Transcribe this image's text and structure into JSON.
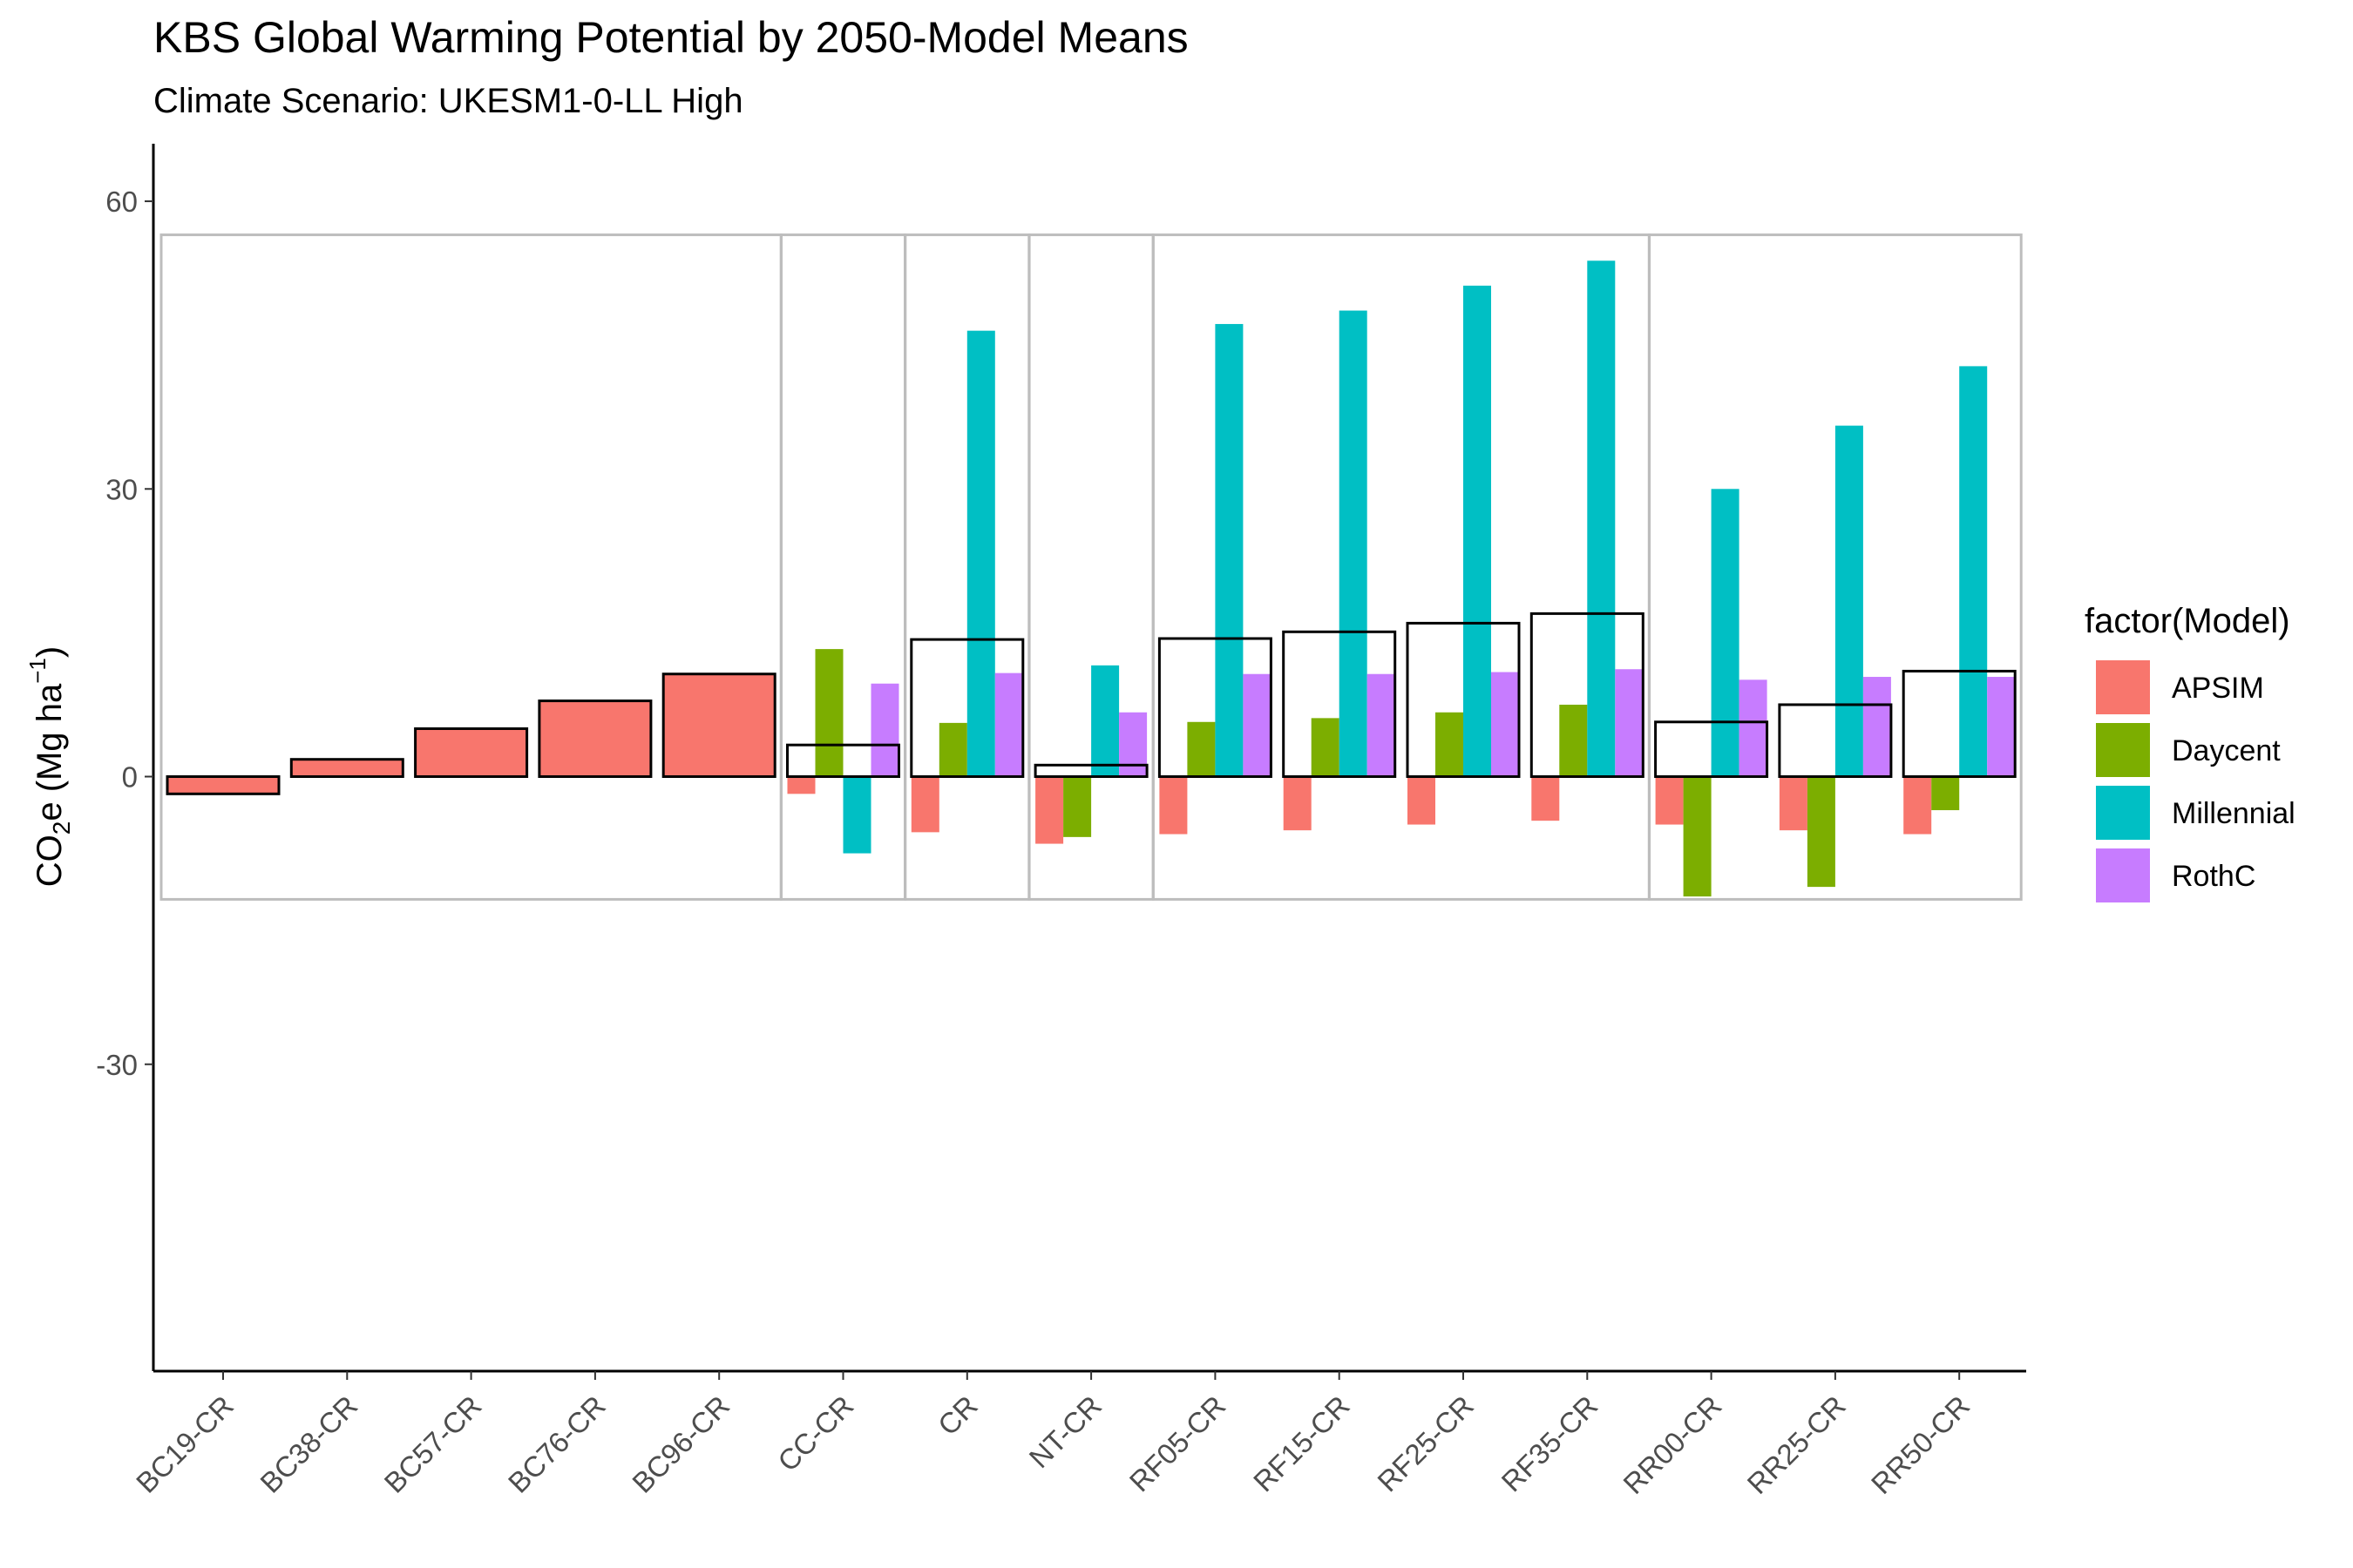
{
  "chart_data": {
    "type": "bar",
    "title": "KBS Global Warming Potential by 2050-Model Means",
    "subtitle": "Climate Scenario: UKESM1-0-LL High",
    "ylabel_main": "CO",
    "ylabel_sub": "2",
    "ylabel_rest": "e (Mg ha",
    "ylabel_sup": "−1",
    "ylabel_close": ")",
    "ylim": [
      -62,
      66
    ],
    "yticks": [
      60,
      30,
      0,
      -30
    ],
    "ytick_labels": [
      "60",
      "30",
      "0",
      "-30"
    ],
    "grid": false,
    "legend_position": "right",
    "legend_title": "factor(Model)",
    "categories": [
      "BC19-CR",
      "BC38-CR",
      "BC57-CR",
      "BC76-CR",
      "BC96-CR",
      "CC-CR",
      "CR",
      "NT-CR",
      "RF05-CR",
      "RF15-CR",
      "RF25-CR",
      "RF35-CR",
      "RR00-CR",
      "RR25-CR",
      "RR50-CR"
    ],
    "series": [
      {
        "name": "APSIM",
        "color": "#F8766D",
        "values": [
          -1.8,
          1.8,
          5.0,
          7.9,
          10.7,
          -1.8,
          -5.8,
          -7.0,
          -6.0,
          -5.6,
          -5.0,
          -4.6,
          -5.0,
          -5.6,
          -6.0
        ]
      },
      {
        "name": "Daycent",
        "color": "#7CAE00",
        "values": [
          null,
          null,
          null,
          null,
          null,
          13.3,
          5.6,
          -6.3,
          5.7,
          6.1,
          6.7,
          7.5,
          -12.5,
          -11.5,
          -3.5
        ]
      },
      {
        "name": "Millennial",
        "color": "#00BFC4",
        "values": [
          null,
          null,
          null,
          null,
          null,
          -8.0,
          46.5,
          11.6,
          47.2,
          48.6,
          51.2,
          53.8,
          30.0,
          36.6,
          42.8
        ]
      },
      {
        "name": "RothC",
        "color": "#C77CFF",
        "values": [
          null,
          null,
          null,
          null,
          null,
          9.7,
          10.8,
          6.7,
          10.7,
          10.7,
          10.9,
          11.2,
          10.1,
          10.4,
          10.4
        ]
      }
    ],
    "ensemble_mean": [
      -1.8,
      1.8,
      5.0,
      7.9,
      10.7,
      3.3,
      14.3,
      1.2,
      14.4,
      15.1,
      16.0,
      17.0,
      5.7,
      7.5,
      11.0
    ],
    "panel_groups": [
      {
        "start": 0,
        "end": 4
      },
      {
        "start": 5,
        "end": 5
      },
      {
        "start": 6,
        "end": 6
      },
      {
        "start": 7,
        "end": 7
      },
      {
        "start": 8,
        "end": 11
      },
      {
        "start": 12,
        "end": 14
      }
    ],
    "panel_box_range": [
      -12.8,
      56.5
    ]
  }
}
